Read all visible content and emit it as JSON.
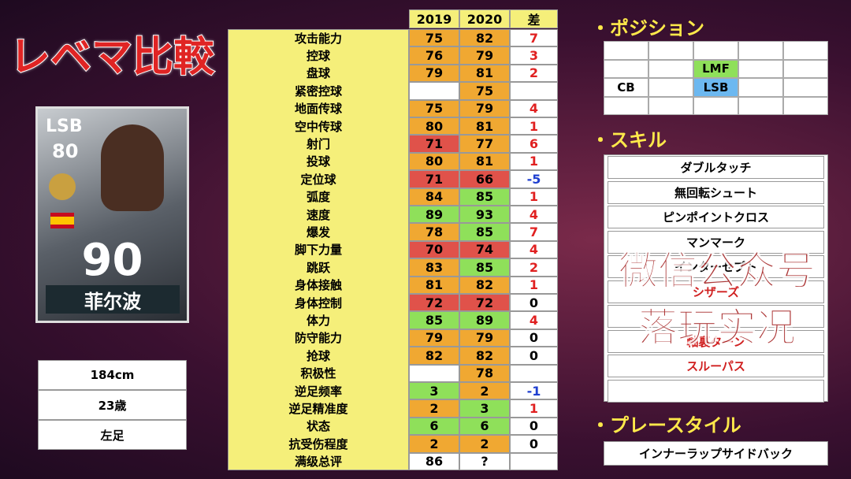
{
  "title": "レベマ比較",
  "card": {
    "position": "LSB",
    "rating": "80",
    "overall": "90",
    "name": "菲尔波"
  },
  "info": [
    "184cm",
    "23歳",
    "左足"
  ],
  "table": {
    "headers": [
      "2019",
      "2020",
      "差"
    ],
    "rows": [
      [
        "攻击能力",
        75,
        82,
        7,
        "#f0a832",
        "#f0a832"
      ],
      [
        "控球",
        76,
        79,
        3,
        "#f0a832",
        "#f0a832"
      ],
      [
        "盘球",
        79,
        81,
        2,
        "#f0a832",
        "#f0a832"
      ],
      [
        "紧密控球",
        null,
        75,
        null,
        "#ffffff",
        "#f0a832"
      ],
      [
        "地面传球",
        75,
        79,
        4,
        "#f0a832",
        "#f0a832"
      ],
      [
        "空中传球",
        80,
        81,
        1,
        "#f0a832",
        "#f0a832"
      ],
      [
        "射门",
        71,
        77,
        6,
        "#e0524a",
        "#f0a832"
      ],
      [
        "投球",
        80,
        81,
        1,
        "#f0a832",
        "#f0a832"
      ],
      [
        "定位球",
        71,
        66,
        -5,
        "#e0524a",
        "#e0524a"
      ],
      [
        "弧度",
        84,
        85,
        1,
        "#f0a832",
        "#8fe05a"
      ],
      [
        "速度",
        89,
        93,
        4,
        "#8fe05a",
        "#8fe05a"
      ],
      [
        "爆发",
        78,
        85,
        7,
        "#f0a832",
        "#8fe05a"
      ],
      [
        "脚下力量",
        70,
        74,
        4,
        "#e0524a",
        "#e0524a"
      ],
      [
        "跳跃",
        83,
        85,
        2,
        "#f0a832",
        "#8fe05a"
      ],
      [
        "身体接触",
        81,
        82,
        1,
        "#f0a832",
        "#f0a832"
      ],
      [
        "身体控制",
        72,
        72,
        0,
        "#e0524a",
        "#e0524a"
      ],
      [
        "体力",
        85,
        89,
        4,
        "#8fe05a",
        "#8fe05a"
      ],
      [
        "防守能力",
        79,
        79,
        0,
        "#f0a832",
        "#f0a832"
      ],
      [
        "抢球",
        82,
        82,
        0,
        "#f0a832",
        "#f0a832"
      ],
      [
        "积极性",
        null,
        78,
        null,
        "#ffffff",
        "#f0a832"
      ],
      [
        "逆足频率",
        3,
        2,
        -1,
        "#8fe05a",
        "#f0a832"
      ],
      [
        "逆足精准度",
        2,
        3,
        1,
        "#f0a832",
        "#8fe05a"
      ],
      [
        "状态",
        6,
        6,
        0,
        "#8fe05a",
        "#8fe05a"
      ],
      [
        "抗受伤程度",
        2,
        2,
        0,
        "#f0a832",
        "#f0a832"
      ],
      [
        "满级总评",
        86,
        "?",
        null,
        "#ffffff",
        "#ffffff"
      ]
    ]
  },
  "position": {
    "heading": "・ポジション",
    "grid": [
      [
        null,
        null,
        null,
        null,
        null
      ],
      [
        null,
        null,
        "LMF",
        null,
        null
      ],
      [
        "CB",
        null,
        "LSB",
        null,
        null
      ],
      [
        null,
        null,
        null,
        null,
        null
      ]
    ],
    "colors": {
      "LMF": "#8fe05a",
      "LSB": "#6cb8f0"
    }
  },
  "skills": {
    "heading": "・スキル",
    "items": [
      {
        "label": "ダブルタッチ",
        "color": "#000000"
      },
      {
        "label": "無回転シュート",
        "color": "#000000"
      },
      {
        "label": "ピンポイントクロス",
        "color": "#000000"
      },
      {
        "label": "マンマーク",
        "color": "#000000"
      },
      {
        "label": "インターセプト",
        "color": "#000000"
      },
      {
        "label": "シザーズ",
        "color": "#d02020"
      },
      {
        "label": null,
        "color": "#d02020"
      },
      {
        "label": "軸裏ターン",
        "color": "#d02020"
      },
      {
        "label": "スルーパス",
        "color": "#d02020"
      },
      {
        "label": null,
        "color": "#000000"
      }
    ]
  },
  "playstyle": {
    "heading": "・プレースタイル",
    "value": "インナーラップサイドバック"
  },
  "watermark": [
    "微信公众号",
    "落玩实况"
  ]
}
